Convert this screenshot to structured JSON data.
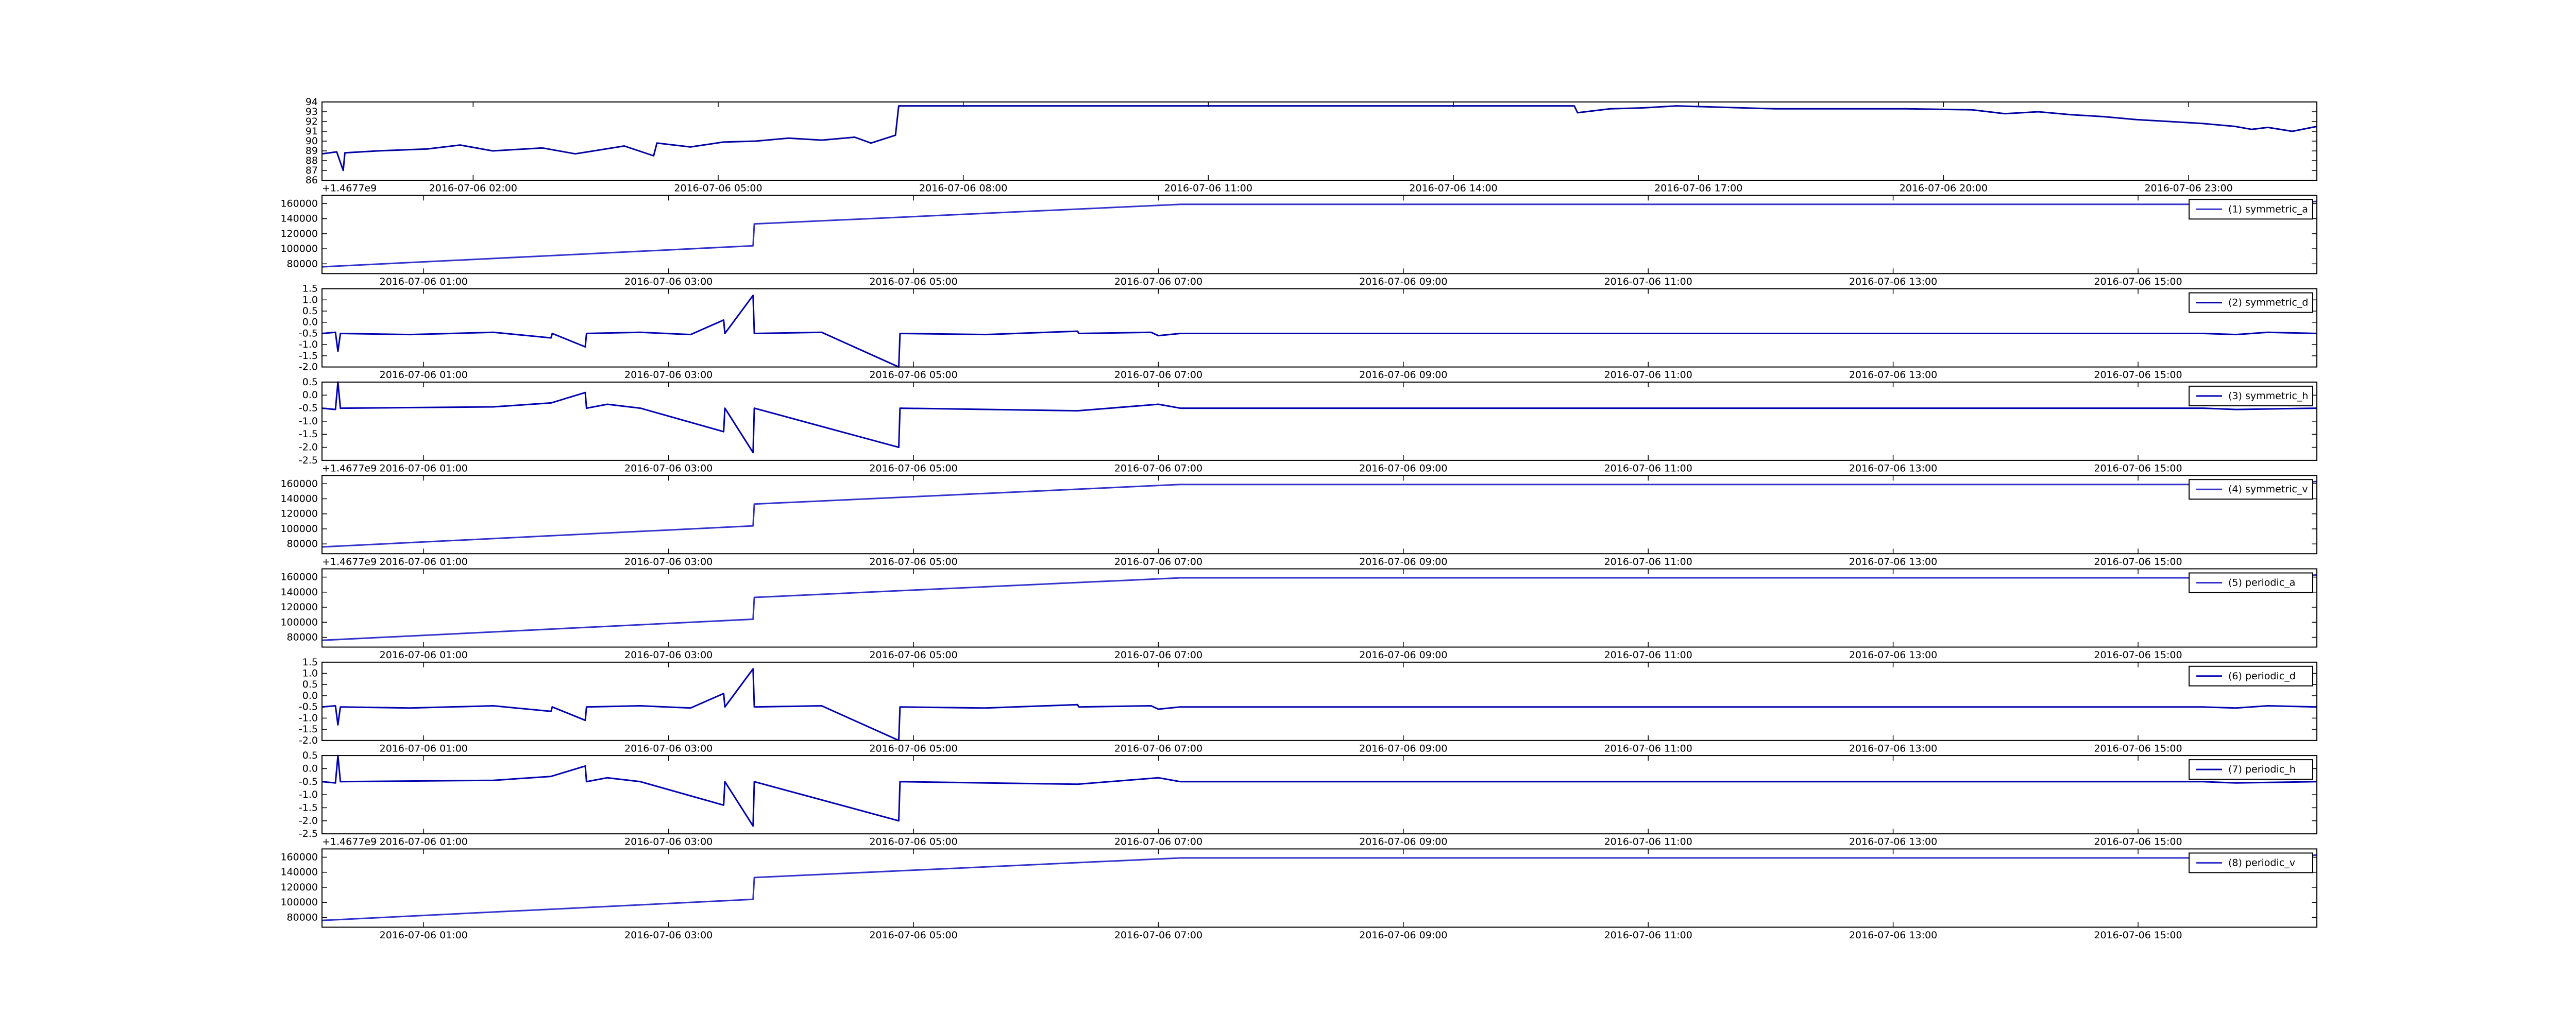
{
  "chart_data": [
    {
      "type": "line",
      "xlim": [
        0.15,
        24.57
      ],
      "ylim": [
        86,
        94
      ],
      "yticks": [
        86,
        87,
        88,
        89,
        90,
        91,
        92,
        93,
        94
      ],
      "xticks": [
        {
          "value": 2,
          "label": "2016-07-06 02:00"
        },
        {
          "value": 5,
          "label": "2016-07-06 05:00"
        },
        {
          "value": 8,
          "label": "2016-07-06 08:00"
        },
        {
          "value": 11,
          "label": "2016-07-06 11:00"
        },
        {
          "value": 14,
          "label": "2016-07-06 14:00"
        },
        {
          "value": 17,
          "label": "2016-07-06 17:00"
        },
        {
          "value": 20,
          "label": "2016-07-06 20:00"
        },
        {
          "value": 23,
          "label": "2016-07-06 23:00"
        }
      ],
      "offset_text": "+1.4677e9",
      "series": [
        {
          "color": "#0000a0",
          "x": [
            0.15,
            0.33,
            0.41,
            0.43,
            0.83,
            1.44,
            1.84,
            2.24,
            2.85,
            3.25,
            3.85,
            4.21,
            4.25,
            4.66,
            5.06,
            5.46,
            5.86,
            6.27,
            6.67,
            6.87,
            7.17,
            7.21,
            10.29,
            15.48,
            15.52,
            15.92,
            16.33,
            16.73,
            17.13,
            17.94,
            18.74,
            19.55,
            20.35,
            20.75,
            21.16,
            21.56,
            21.96,
            22.36,
            22.77,
            23.17,
            23.57,
            23.77,
            23.97,
            24.27,
            24.57
          ],
          "values": [
            88.7,
            88.9,
            87.0,
            88.8,
            89.0,
            89.2,
            89.6,
            89.0,
            89.3,
            88.7,
            89.5,
            88.5,
            89.8,
            89.4,
            89.9,
            90.0,
            90.3,
            90.1,
            90.4,
            89.8,
            90.6,
            93.6,
            93.6,
            93.6,
            92.9,
            93.3,
            93.4,
            93.6,
            93.5,
            93.3,
            93.3,
            93.3,
            93.2,
            92.8,
            93.0,
            92.7,
            92.5,
            92.2,
            92.0,
            91.8,
            91.5,
            91.2,
            91.4,
            91.0,
            91.5
          ]
        }
      ]
    },
    {
      "type": "line",
      "xlim": [
        0.17,
        16.46
      ],
      "ylim": [
        67000,
        171000
      ],
      "yticks": [
        80000,
        100000,
        120000,
        140000,
        160000
      ],
      "xticks": [
        {
          "value": 1,
          "label": "2016-07-06 01:00"
        },
        {
          "value": 3,
          "label": "2016-07-06 03:00"
        },
        {
          "value": 5,
          "label": "2016-07-06 05:00"
        },
        {
          "value": 7,
          "label": "2016-07-06 07:00"
        },
        {
          "value": 9,
          "label": "2016-07-06 09:00"
        },
        {
          "value": 11,
          "label": "2016-07-06 11:00"
        },
        {
          "value": 13,
          "label": "2016-07-06 13:00"
        },
        {
          "value": 15,
          "label": "2016-07-06 15:00"
        }
      ],
      "series": [
        {
          "name": "(1) symmetric_a",
          "color": "#3333cc",
          "x": [
            0.17,
            3.69,
            3.7,
            7.18,
            16.2,
            16.46
          ],
          "values": [
            76000,
            104000,
            133000,
            159000,
            159000,
            163000
          ]
        }
      ]
    },
    {
      "type": "line",
      "xlim": [
        0.17,
        16.46
      ],
      "ylim": [
        -2,
        1.5
      ],
      "yticks": [
        {
          "value": -2,
          "label": "-2.0"
        },
        -1.5,
        {
          "value": -1,
          "label": "-1.0"
        },
        -0.5,
        {
          "value": 0,
          "label": "0.0"
        },
        0.5,
        {
          "value": 1,
          "label": "1.0"
        },
        1.5
      ],
      "xticks": [
        {
          "value": 1,
          "label": "2016-07-06 01:00"
        },
        {
          "value": 3,
          "label": "2016-07-06 03:00"
        },
        {
          "value": 5,
          "label": "2016-07-06 05:00"
        },
        {
          "value": 7,
          "label": "2016-07-06 07:00"
        },
        {
          "value": 9,
          "label": "2016-07-06 09:00"
        },
        {
          "value": 11,
          "label": "2016-07-06 11:00"
        },
        {
          "value": 13,
          "label": "2016-07-06 13:00"
        },
        {
          "value": 15,
          "label": "2016-07-06 15:00"
        }
      ],
      "series": [
        {
          "name": "(2) symmetric_d",
          "color": "#0000b0",
          "x": [
            0.17,
            0.28,
            0.3,
            0.32,
            0.89,
            1.57,
            2.04,
            2.05,
            2.32,
            2.33,
            2.77,
            3.18,
            3.45,
            3.46,
            3.69,
            3.7,
            4.25,
            4.88,
            4.89,
            5.59,
            6.34,
            6.35,
            6.94,
            7.0,
            7.18,
            15.53,
            15.8,
            16.06,
            16.46
          ],
          "values": [
            -0.5,
            -0.45,
            -1.3,
            -0.5,
            -0.55,
            -0.45,
            -0.7,
            -0.5,
            -1.1,
            -0.5,
            -0.45,
            -0.55,
            0.1,
            -0.5,
            1.2,
            -0.5,
            -0.45,
            -2.0,
            -0.5,
            -0.55,
            -0.4,
            -0.5,
            -0.45,
            -0.6,
            -0.5,
            -0.5,
            -0.55,
            -0.45,
            -0.5
          ]
        }
      ]
    },
    {
      "type": "line",
      "xlim": [
        0.17,
        16.46
      ],
      "ylim": [
        -2.5,
        0.5
      ],
      "yticks": [
        -2.5,
        {
          "value": -2,
          "label": "-2.0"
        },
        -1.5,
        {
          "value": -1,
          "label": "-1.0"
        },
        -0.5,
        {
          "value": 0,
          "label": "0.0"
        },
        0.5
      ],
      "xticks": [
        {
          "value": 1,
          "label": "2016-07-06 01:00"
        },
        {
          "value": 3,
          "label": "2016-07-06 03:00"
        },
        {
          "value": 5,
          "label": "2016-07-06 05:00"
        },
        {
          "value": 7,
          "label": "2016-07-06 07:00"
        },
        {
          "value": 9,
          "label": "2016-07-06 09:00"
        },
        {
          "value": 11,
          "label": "2016-07-06 11:00"
        },
        {
          "value": 13,
          "label": "2016-07-06 13:00"
        },
        {
          "value": 15,
          "label": "2016-07-06 15:00"
        }
      ],
      "offset_text": "+1.4677e9",
      "series": [
        {
          "name": "(3) symmetric_h",
          "color": "#0000b0",
          "x": [
            0.17,
            0.28,
            0.3,
            0.32,
            1.57,
            2.04,
            2.32,
            2.33,
            2.5,
            2.77,
            3.45,
            3.46,
            3.69,
            3.7,
            4.88,
            4.89,
            6.34,
            7.0,
            7.18,
            15.53,
            15.8,
            16.46
          ],
          "values": [
            -0.5,
            -0.55,
            0.5,
            -0.5,
            -0.45,
            -0.3,
            0.1,
            -0.5,
            -0.35,
            -0.5,
            -1.4,
            -0.5,
            -2.2,
            -0.5,
            -2.0,
            -0.5,
            -0.6,
            -0.35,
            -0.5,
            -0.5,
            -0.55,
            -0.5
          ]
        }
      ]
    },
    {
      "type": "line",
      "xlim": [
        0.17,
        16.46
      ],
      "ylim": [
        67000,
        171000
      ],
      "yticks": [
        80000,
        100000,
        120000,
        140000,
        160000
      ],
      "xticks": [
        {
          "value": 1,
          "label": "2016-07-06 01:00"
        },
        {
          "value": 3,
          "label": "2016-07-06 03:00"
        },
        {
          "value": 5,
          "label": "2016-07-06 05:00"
        },
        {
          "value": 7,
          "label": "2016-07-06 07:00"
        },
        {
          "value": 9,
          "label": "2016-07-06 09:00"
        },
        {
          "value": 11,
          "label": "2016-07-06 11:00"
        },
        {
          "value": 13,
          "label": "2016-07-06 13:00"
        },
        {
          "value": 15,
          "label": "2016-07-06 15:00"
        }
      ],
      "offset_text": "+1.4677e9",
      "series": [
        {
          "name": "(4) symmetric_v",
          "color": "#3333cc",
          "x": [
            0.17,
            3.69,
            3.7,
            7.18,
            16.2,
            16.46
          ],
          "values": [
            76000,
            104000,
            133000,
            159000,
            159000,
            163000
          ]
        }
      ]
    },
    {
      "type": "line",
      "xlim": [
        0.17,
        16.46
      ],
      "ylim": [
        67000,
        171000
      ],
      "yticks": [
        80000,
        100000,
        120000,
        140000,
        160000
      ],
      "xticks": [
        {
          "value": 1,
          "label": "2016-07-06 01:00"
        },
        {
          "value": 3,
          "label": "2016-07-06 03:00"
        },
        {
          "value": 5,
          "label": "2016-07-06 05:00"
        },
        {
          "value": 7,
          "label": "2016-07-06 07:00"
        },
        {
          "value": 9,
          "label": "2016-07-06 09:00"
        },
        {
          "value": 11,
          "label": "2016-07-06 11:00"
        },
        {
          "value": 13,
          "label": "2016-07-06 13:00"
        },
        {
          "value": 15,
          "label": "2016-07-06 15:00"
        }
      ],
      "series": [
        {
          "name": "(5) periodic_a",
          "color": "#3333cc",
          "x": [
            0.17,
            3.69,
            3.7,
            7.18,
            16.2,
            16.46
          ],
          "values": [
            76000,
            104000,
            133000,
            159000,
            159000,
            163000
          ]
        }
      ]
    },
    {
      "type": "line",
      "xlim": [
        0.17,
        16.46
      ],
      "ylim": [
        -2,
        1.5
      ],
      "yticks": [
        {
          "value": -2,
          "label": "-2.0"
        },
        -1.5,
        {
          "value": -1,
          "label": "-1.0"
        },
        -0.5,
        {
          "value": 0,
          "label": "0.0"
        },
        0.5,
        {
          "value": 1,
          "label": "1.0"
        },
        1.5
      ],
      "xticks": [
        {
          "value": 1,
          "label": "2016-07-06 01:00"
        },
        {
          "value": 3,
          "label": "2016-07-06 03:00"
        },
        {
          "value": 5,
          "label": "2016-07-06 05:00"
        },
        {
          "value": 7,
          "label": "2016-07-06 07:00"
        },
        {
          "value": 9,
          "label": "2016-07-06 09:00"
        },
        {
          "value": 11,
          "label": "2016-07-06 11:00"
        },
        {
          "value": 13,
          "label": "2016-07-06 13:00"
        },
        {
          "value": 15,
          "label": "2016-07-06 15:00"
        }
      ],
      "series": [
        {
          "name": "(6) periodic_d",
          "color": "#0000b0",
          "x": [
            0.17,
            0.28,
            0.3,
            0.32,
            0.89,
            1.57,
            2.04,
            2.05,
            2.32,
            2.33,
            2.77,
            3.18,
            3.45,
            3.46,
            3.69,
            3.7,
            4.25,
            4.88,
            4.89,
            5.59,
            6.34,
            6.35,
            6.94,
            7.0,
            7.18,
            15.53,
            15.8,
            16.06,
            16.46
          ],
          "values": [
            -0.5,
            -0.45,
            -1.3,
            -0.5,
            -0.55,
            -0.45,
            -0.7,
            -0.5,
            -1.1,
            -0.5,
            -0.45,
            -0.55,
            0.1,
            -0.5,
            1.2,
            -0.5,
            -0.45,
            -2.0,
            -0.5,
            -0.55,
            -0.4,
            -0.5,
            -0.45,
            -0.6,
            -0.5,
            -0.5,
            -0.55,
            -0.45,
            -0.5
          ]
        }
      ]
    },
    {
      "type": "line",
      "xlim": [
        0.17,
        16.46
      ],
      "ylim": [
        -2.5,
        0.5
      ],
      "yticks": [
        -2.5,
        {
          "value": -2,
          "label": "-2.0"
        },
        -1.5,
        {
          "value": -1,
          "label": "-1.0"
        },
        -0.5,
        {
          "value": 0,
          "label": "0.0"
        },
        0.5
      ],
      "xticks": [
        {
          "value": 1,
          "label": "2016-07-06 01:00"
        },
        {
          "value": 3,
          "label": "2016-07-06 03:00"
        },
        {
          "value": 5,
          "label": "2016-07-06 05:00"
        },
        {
          "value": 7,
          "label": "2016-07-06 07:00"
        },
        {
          "value": 9,
          "label": "2016-07-06 09:00"
        },
        {
          "value": 11,
          "label": "2016-07-06 11:00"
        },
        {
          "value": 13,
          "label": "2016-07-06 13:00"
        },
        {
          "value": 15,
          "label": "2016-07-06 15:00"
        }
      ],
      "offset_text": "+1.4677e9",
      "series": [
        {
          "name": "(7) periodic_h",
          "color": "#0000b0",
          "x": [
            0.17,
            0.28,
            0.3,
            0.32,
            1.57,
            2.04,
            2.32,
            2.33,
            2.5,
            2.77,
            3.45,
            3.46,
            3.69,
            3.7,
            4.88,
            4.89,
            6.34,
            7.0,
            7.18,
            15.53,
            15.8,
            16.46
          ],
          "values": [
            -0.5,
            -0.55,
            0.5,
            -0.5,
            -0.45,
            -0.3,
            0.1,
            -0.5,
            -0.35,
            -0.5,
            -1.4,
            -0.5,
            -2.2,
            -0.5,
            -2.0,
            -0.5,
            -0.6,
            -0.35,
            -0.5,
            -0.5,
            -0.55,
            -0.5
          ]
        }
      ]
    },
    {
      "type": "line",
      "xlim": [
        0.17,
        16.46
      ],
      "ylim": [
        67000,
        171000
      ],
      "yticks": [
        80000,
        100000,
        120000,
        140000,
        160000
      ],
      "xticks": [
        {
          "value": 1,
          "label": "2016-07-06 01:00"
        },
        {
          "value": 3,
          "label": "2016-07-06 03:00"
        },
        {
          "value": 5,
          "label": "2016-07-06 05:00"
        },
        {
          "value": 7,
          "label": "2016-07-06 07:00"
        },
        {
          "value": 9,
          "label": "2016-07-06 09:00"
        },
        {
          "value": 11,
          "label": "2016-07-06 11:00"
        },
        {
          "value": 13,
          "label": "2016-07-06 13:00"
        },
        {
          "value": 15,
          "label": "2016-07-06 15:00"
        }
      ],
      "series": [
        {
          "name": "(8) periodic_v",
          "color": "#3333cc",
          "x": [
            0.17,
            3.69,
            3.7,
            7.18,
            16.2,
            16.46
          ],
          "values": [
            76000,
            104000,
            133000,
            159000,
            159000,
            163000
          ]
        }
      ]
    }
  ]
}
